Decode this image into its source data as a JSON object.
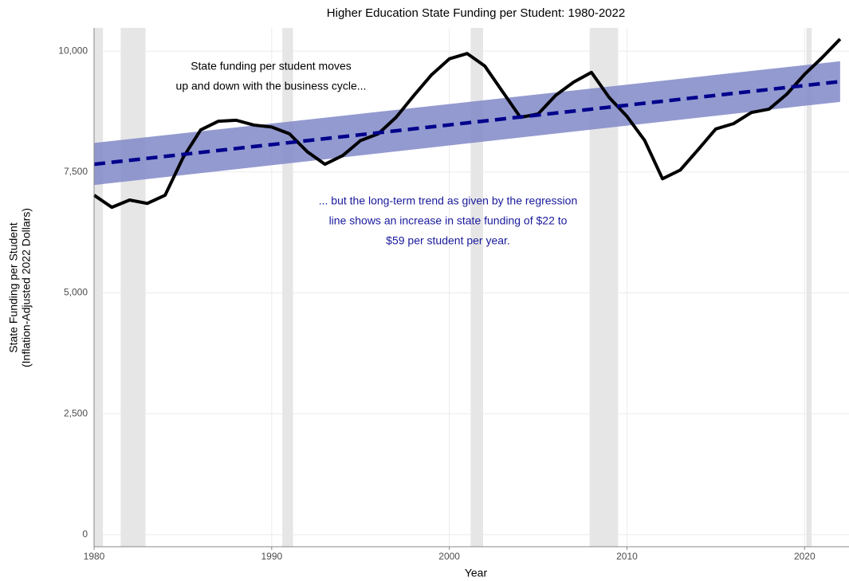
{
  "chart_data": {
    "type": "line",
    "title": "Higher Education State Funding per Student: 1980-2022",
    "x_label": "Year",
    "y_label": [
      "State Funding per Student",
      "(Inflation-Adjusted 2022 Dollars)"
    ],
    "annotations": [
      {
        "lines": [
          "State funding per student moves",
          "up and down with the business cycle..."
        ],
        "color": "#000000"
      },
      {
        "lines": [
          "... but the long-term trend as given by the regression",
          "line shows an increase in state funding of $22 to",
          "$59 per student per year."
        ],
        "color": "#1a1a9c"
      }
    ],
    "x": [
      1980,
      1981,
      1982,
      1983,
      1984,
      1985,
      1986,
      1987,
      1988,
      1989,
      1990,
      1991,
      1992,
      1993,
      1994,
      1995,
      1996,
      1997,
      1998,
      1999,
      2000,
      2001,
      2002,
      2003,
      2004,
      2005,
      2006,
      2007,
      2008,
      2009,
      2010,
      2011,
      2012,
      2013,
      2014,
      2015,
      2016,
      2017,
      2018,
      2019,
      2020,
      2021,
      2022
    ],
    "series": [
      {
        "color": "#000000",
        "values": [
          7020,
          6770,
          6920,
          6850,
          7020,
          7790,
          8370,
          8550,
          8570,
          8470,
          8430,
          8290,
          7920,
          7660,
          7840,
          8150,
          8290,
          8630,
          9080,
          9510,
          9840,
          9950,
          9690,
          9160,
          8630,
          8700,
          9090,
          9360,
          9560,
          9040,
          8650,
          8150,
          7360,
          7540,
          7960,
          8390,
          8500,
          8730,
          8800,
          9110,
          9520,
          9870,
          10250
        ]
      }
    ],
    "trend": {
      "x": [
        1980,
        2022
      ],
      "values": [
        7660,
        9370
      ],
      "lower": [
        7230,
        8950
      ],
      "upper": [
        8100,
        9790
      ],
      "color": "#00008b",
      "band_color": "#8088c8"
    },
    "recessions": [
      [
        1980,
        1980.5
      ],
      [
        1981.5,
        1982.9
      ],
      [
        1990.6,
        1991.2
      ],
      [
        2001.2,
        2001.9
      ],
      [
        2007.9,
        2009.5
      ],
      [
        2020.1,
        2020.4
      ]
    ],
    "recession_color": "#e6e6e6",
    "xlim": [
      1980,
      2022.5
    ],
    "ylim": [
      -250,
      10480
    ],
    "xticks": [
      1980,
      1990,
      2000,
      2010,
      2020
    ],
    "yticks": [
      0,
      {
        "value": 2500,
        "label": "2,500"
      },
      {
        "value": 5000,
        "label": "5,000"
      },
      {
        "value": 7500,
        "label": "7,500"
      },
      {
        "value": 10000,
        "label": "10,000"
      }
    ],
    "grid": true
  }
}
